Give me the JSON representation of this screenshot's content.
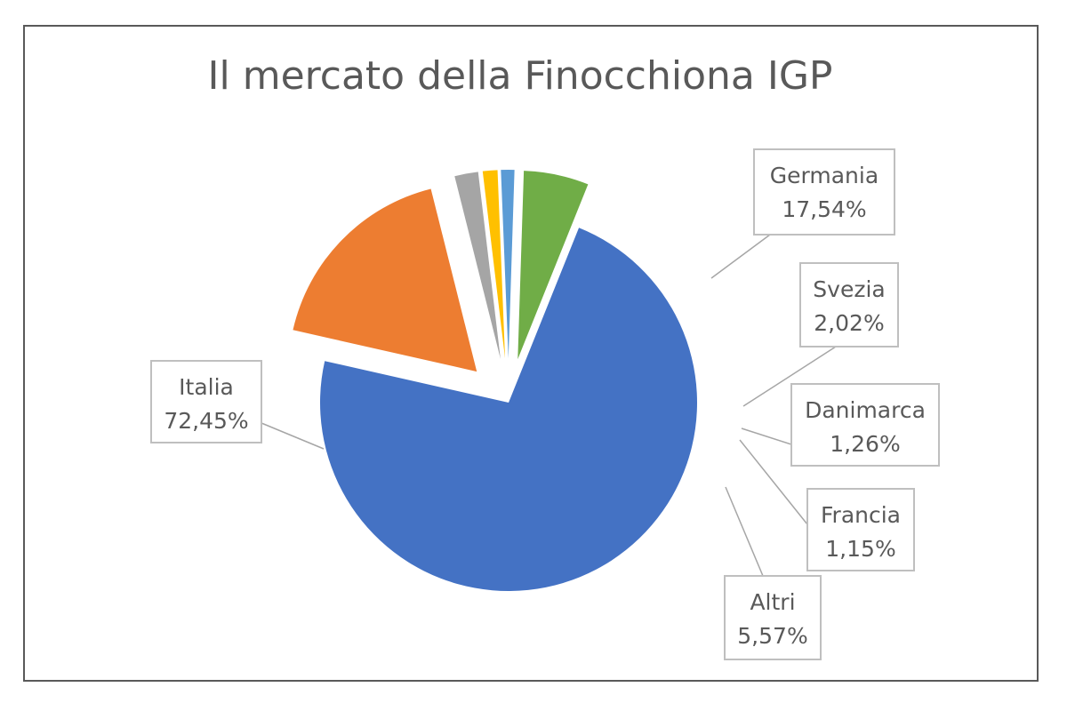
{
  "chart_data": {
    "type": "pie",
    "title": "Il mercato della Finocchiona IGP",
    "slices": [
      {
        "label": "Italia",
        "value": 72.45,
        "display": "72,45%",
        "color": "#4472C4"
      },
      {
        "label": "Germania",
        "value": 17.54,
        "display": "17,54%",
        "color": "#ED7D31"
      },
      {
        "label": "Svezia",
        "value": 2.02,
        "display": "2,02%",
        "color": "#A5A5A5"
      },
      {
        "label": "Danimarca",
        "value": 1.26,
        "display": "1,26%",
        "color": "#FFC000"
      },
      {
        "label": "Francia",
        "value": 1.15,
        "display": "1,15%",
        "color": "#5B9BD5"
      },
      {
        "label": "Altri",
        "value": 5.57,
        "display": "5,57%",
        "color": "#70AD47"
      }
    ],
    "exploded": [
      "Germania",
      "Svezia",
      "Danimarca",
      "Francia",
      "Altri"
    ],
    "legend": "none"
  }
}
